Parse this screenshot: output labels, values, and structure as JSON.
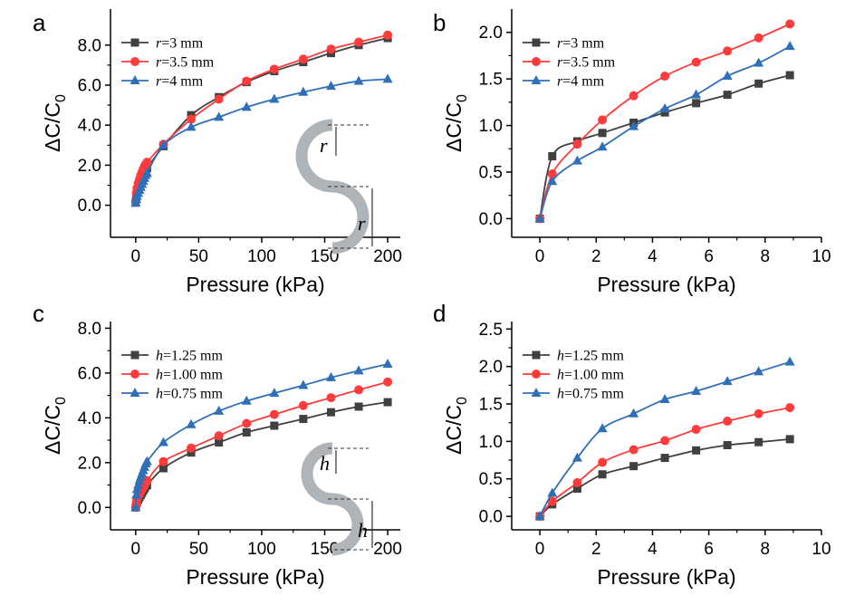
{
  "colors": {
    "black": "#404040",
    "red": "#ff3b3b",
    "blue": "#2f6fb8",
    "inset": "#aeb4b8"
  },
  "chart_data": [
    {
      "panel": "a",
      "type": "line",
      "xlabel": "Pressure (kPa)",
      "ylabel_main": "ΔC/C",
      "ylabel_sub": "0",
      "xlim": [
        -20,
        210
      ],
      "ylim": [
        -1.6,
        9.8
      ],
      "xticks": [
        0,
        50,
        100,
        150,
        200
      ],
      "yticks": [
        0.0,
        2.0,
        4.0,
        6.0,
        8.0
      ],
      "ytick_decimals": 1,
      "legend": "top-left",
      "inset": "radius",
      "inset_label": "r",
      "series": [
        {
          "var": "r",
          "rest": "=3 mm",
          "color": "black",
          "marker": "square",
          "x": [
            0,
            0.5,
            1,
            2,
            3,
            4,
            5,
            6,
            7,
            8,
            9,
            22,
            44,
            66,
            88,
            110,
            133,
            155,
            177,
            200
          ],
          "y": [
            0.15,
            0.45,
            0.65,
            0.85,
            1.0,
            1.15,
            1.3,
            1.45,
            1.6,
            1.75,
            1.85,
            2.95,
            4.5,
            5.4,
            6.15,
            6.7,
            7.15,
            7.6,
            8.0,
            8.35
          ]
        },
        {
          "var": "r",
          "rest": "=3.5 mm",
          "color": "red",
          "marker": "circle",
          "x": [
            0,
            0.5,
            1,
            2,
            3,
            4,
            5,
            6,
            7,
            8,
            9,
            22,
            44,
            66,
            88,
            110,
            133,
            155,
            177,
            200
          ],
          "y": [
            0.2,
            0.6,
            0.85,
            1.1,
            1.3,
            1.5,
            1.65,
            1.8,
            1.95,
            2.05,
            2.15,
            3.05,
            4.3,
            5.3,
            6.2,
            6.8,
            7.3,
            7.8,
            8.15,
            8.5
          ]
        },
        {
          "var": "r",
          "rest": "=4 mm",
          "color": "blue",
          "marker": "triangle",
          "x": [
            0,
            0.5,
            1,
            2,
            3,
            4,
            5,
            6,
            7,
            8,
            9,
            22,
            44,
            66,
            88,
            110,
            133,
            155,
            177,
            200
          ],
          "y": [
            0.1,
            0.3,
            0.45,
            0.6,
            0.75,
            0.9,
            1.05,
            1.2,
            1.35,
            1.5,
            1.6,
            3.0,
            3.9,
            4.4,
            4.9,
            5.3,
            5.65,
            5.95,
            6.2,
            6.3
          ]
        }
      ]
    },
    {
      "panel": "b",
      "type": "line",
      "xlabel": "Pressure (kPa)",
      "ylabel_main": "ΔC/C",
      "ylabel_sub": "0",
      "xlim": [
        -1,
        10
      ],
      "ylim": [
        -0.2,
        2.25
      ],
      "xticks": [
        0,
        2,
        4,
        6,
        8,
        10
      ],
      "yticks": [
        0.0,
        0.5,
        1.0,
        1.5,
        2.0
      ],
      "ytick_decimals": 1,
      "legend": "top-left",
      "inset": "",
      "inset_label": "",
      "series": [
        {
          "var": "r",
          "rest": "=3 mm",
          "color": "black",
          "marker": "square",
          "x": [
            0,
            0.44,
            1.33,
            2.22,
            3.33,
            4.44,
            5.55,
            6.66,
            7.77,
            8.88
          ],
          "y": [
            0.0,
            0.67,
            0.83,
            0.92,
            1.03,
            1.14,
            1.24,
            1.33,
            1.45,
            1.54
          ]
        },
        {
          "var": "r",
          "rest": "=3.5 mm",
          "color": "red",
          "marker": "circle",
          "x": [
            0,
            0.44,
            1.33,
            2.22,
            3.33,
            4.44,
            5.55,
            6.66,
            7.77,
            8.88
          ],
          "y": [
            0.0,
            0.48,
            0.8,
            1.06,
            1.32,
            1.53,
            1.68,
            1.8,
            1.94,
            2.09
          ]
        },
        {
          "var": "r",
          "rest": "=4 mm",
          "color": "blue",
          "marker": "triangle",
          "x": [
            0,
            0.44,
            1.33,
            2.22,
            3.33,
            4.44,
            5.55,
            6.66,
            7.77,
            8.88
          ],
          "y": [
            0.0,
            0.4,
            0.62,
            0.77,
            0.99,
            1.18,
            1.33,
            1.53,
            1.67,
            1.85
          ]
        }
      ]
    },
    {
      "panel": "c",
      "type": "line",
      "xlabel": "Pressure (kPa)",
      "ylabel_main": "ΔC/C",
      "ylabel_sub": "0",
      "xlim": [
        -20,
        210
      ],
      "ylim": [
        -1.0,
        8.3
      ],
      "xticks": [
        0,
        50,
        100,
        150,
        200
      ],
      "yticks": [
        0.0,
        2.0,
        4.0,
        6.0,
        8.0
      ],
      "ytick_decimals": 1,
      "legend": "top-left",
      "inset": "height",
      "inset_label": "h",
      "series": [
        {
          "var": "h",
          "rest": "=1.25 mm",
          "color": "black",
          "marker": "square",
          "x": [
            0,
            0.5,
            1,
            2,
            3,
            4,
            5,
            6,
            7,
            8,
            9,
            22,
            44,
            66,
            88,
            110,
            133,
            155,
            177,
            200
          ],
          "y": [
            0.0,
            0.15,
            0.25,
            0.35,
            0.45,
            0.55,
            0.65,
            0.75,
            0.85,
            0.95,
            1.0,
            1.75,
            2.45,
            2.9,
            3.35,
            3.65,
            3.95,
            4.25,
            4.5,
            4.7
          ]
        },
        {
          "var": "h",
          "rest": "=1.00 mm",
          "color": "red",
          "marker": "circle",
          "x": [
            0,
            0.5,
            1,
            2,
            3,
            4,
            5,
            6,
            7,
            8,
            9,
            22,
            44,
            66,
            88,
            110,
            133,
            155,
            177,
            200
          ],
          "y": [
            0.0,
            0.2,
            0.35,
            0.5,
            0.6,
            0.7,
            0.8,
            0.9,
            1.0,
            1.1,
            1.2,
            2.05,
            2.65,
            3.2,
            3.75,
            4.15,
            4.55,
            4.9,
            5.25,
            5.6
          ]
        },
        {
          "var": "h",
          "rest": "=0.75 mm",
          "color": "blue",
          "marker": "triangle",
          "x": [
            0,
            0.5,
            1,
            2,
            3,
            4,
            5,
            6,
            7,
            8,
            9,
            22,
            44,
            66,
            88,
            110,
            133,
            155,
            177,
            200
          ],
          "y": [
            0.0,
            0.55,
            0.8,
            1.0,
            1.2,
            1.35,
            1.5,
            1.65,
            1.8,
            1.95,
            2.05,
            2.9,
            3.7,
            4.3,
            4.75,
            5.1,
            5.45,
            5.8,
            6.1,
            6.4
          ]
        }
      ]
    },
    {
      "panel": "d",
      "type": "line",
      "xlabel": "Pressure (kPa)",
      "ylabel_main": "ΔC/C",
      "ylabel_sub": "0",
      "xlim": [
        -1,
        10
      ],
      "ylim": [
        -0.18,
        2.6
      ],
      "xticks": [
        0,
        2,
        4,
        6,
        8,
        10
      ],
      "yticks": [
        0.0,
        0.5,
        1.0,
        1.5,
        2.0,
        2.5
      ],
      "ytick_decimals": 1,
      "legend": "top-left",
      "inset": "",
      "inset_label": "",
      "series": [
        {
          "var": "h",
          "rest": "=1.25 mm",
          "color": "black",
          "marker": "square",
          "x": [
            0,
            0.44,
            1.33,
            2.22,
            3.33,
            4.44,
            5.55,
            6.66,
            7.77,
            8.88
          ],
          "y": [
            0.0,
            0.16,
            0.37,
            0.56,
            0.67,
            0.78,
            0.88,
            0.95,
            0.99,
            1.03
          ]
        },
        {
          "var": "h",
          "rest": "=1.00 mm",
          "color": "red",
          "marker": "circle",
          "x": [
            0,
            0.44,
            1.33,
            2.22,
            3.33,
            4.44,
            5.55,
            6.66,
            7.77,
            8.88
          ],
          "y": [
            0.0,
            0.2,
            0.45,
            0.72,
            0.89,
            1.01,
            1.16,
            1.27,
            1.37,
            1.45
          ]
        },
        {
          "var": "h",
          "rest": "=0.75 mm",
          "color": "blue",
          "marker": "triangle",
          "x": [
            0,
            0.44,
            1.33,
            2.22,
            3.33,
            4.44,
            5.55,
            6.66,
            7.77,
            8.88
          ],
          "y": [
            0.0,
            0.31,
            0.78,
            1.17,
            1.37,
            1.56,
            1.67,
            1.8,
            1.93,
            2.06
          ]
        }
      ]
    }
  ]
}
